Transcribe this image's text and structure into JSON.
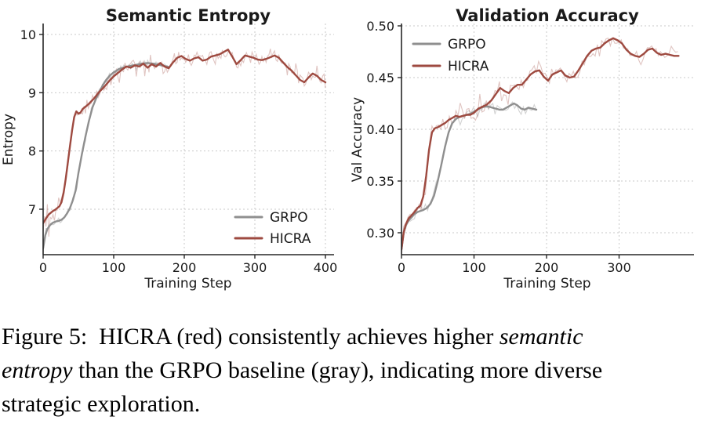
{
  "page": {
    "background": "#ffffff"
  },
  "colors": {
    "hicra": "#9e4a40",
    "grpo": "#8f8f8f",
    "hicra_raw": "rgba(158,74,64,0.32)",
    "grpo_raw": "rgba(158,158,158,0.45)",
    "grid": "#c9c9c9",
    "axis": "#262626",
    "text": "#1a1a1a"
  },
  "caption": {
    "lines": [
      {
        "segments": [
          {
            "text": "Figure 5:  HICRA (red) consistently achieves higher ",
            "italic": false
          },
          {
            "text": "semantic",
            "italic": true
          }
        ]
      },
      {
        "segments": [
          {
            "text": "entropy",
            "italic": true
          },
          {
            "text": " than the GRPO baseline (gray), indicating more diverse",
            "italic": false
          }
        ]
      },
      {
        "segments": [
          {
            "text": "strategic exploration.",
            "italic": false
          }
        ]
      }
    ]
  },
  "chart_data": [
    {
      "id": "semantic-entropy",
      "type": "line",
      "title": "Semantic Entropy",
      "xlabel": "Training Step",
      "ylabel": "Entropy",
      "xlim": [
        0,
        412
      ],
      "ylim": [
        6.22,
        10.19
      ],
      "grid": true,
      "legend_position": "lower-right",
      "raw_interval": 2,
      "xticks": {
        "values": [
          0,
          100,
          200,
          300,
          400
        ],
        "labels": [
          "0",
          "100",
          "200",
          "300",
          "400"
        ]
      },
      "yticks": {
        "values": [
          7,
          8,
          9,
          10
        ],
        "labels": [
          "7",
          "8",
          "9",
          "10"
        ]
      },
      "series": [
        {
          "name": "GRPO",
          "color_key": "grpo",
          "raw_color_key": "grpo_raw",
          "noise": 0.05,
          "x": [
            0,
            3,
            6,
            10,
            14,
            18,
            22,
            26,
            30,
            34,
            38,
            42,
            46,
            50,
            55,
            60,
            65,
            70,
            75,
            80,
            85,
            90,
            95,
            100,
            108,
            116,
            124,
            132,
            140,
            148,
            156,
            164,
            171,
            178
          ],
          "y": [
            6.33,
            6.55,
            6.66,
            6.73,
            6.77,
            6.79,
            6.8,
            6.82,
            6.86,
            6.93,
            7.02,
            7.15,
            7.32,
            7.62,
            7.95,
            8.25,
            8.52,
            8.75,
            8.9,
            9.02,
            9.14,
            9.23,
            9.3,
            9.35,
            9.41,
            9.44,
            9.46,
            9.48,
            9.5,
            9.51,
            9.5,
            9.48,
            9.46,
            9.44
          ]
        },
        {
          "name": "HICRA",
          "color_key": "hicra",
          "raw_color_key": "hicra_raw",
          "noise": 0.1,
          "x": [
            0,
            2,
            5,
            8,
            11,
            14,
            17,
            20,
            23,
            26,
            29,
            32,
            35,
            38,
            41,
            44,
            47,
            50,
            53,
            56,
            60,
            64,
            68,
            72,
            76,
            80,
            85,
            90,
            95,
            100,
            106,
            112,
            118,
            124,
            130,
            136,
            142,
            148,
            154,
            160,
            166,
            172,
            178,
            184,
            190,
            196,
            202,
            208,
            214,
            220,
            226,
            232,
            238,
            244,
            250,
            256,
            262,
            268,
            274,
            280,
            286,
            292,
            298,
            304,
            310,
            316,
            322,
            328,
            334,
            340,
            346,
            352,
            358,
            364,
            370,
            376,
            382,
            388,
            394,
            400
          ],
          "y": [
            6.76,
            6.8,
            6.86,
            6.91,
            6.94,
            6.97,
            6.99,
            7.02,
            7.05,
            7.12,
            7.28,
            7.52,
            7.8,
            8.08,
            8.35,
            8.58,
            8.68,
            8.64,
            8.66,
            8.72,
            8.76,
            8.8,
            8.85,
            8.9,
            8.96,
            9.02,
            9.08,
            9.15,
            9.22,
            9.28,
            9.34,
            9.4,
            9.45,
            9.43,
            9.47,
            9.45,
            9.5,
            9.43,
            9.49,
            9.45,
            9.51,
            9.45,
            9.42,
            9.52,
            9.6,
            9.63,
            9.58,
            9.55,
            9.59,
            9.61,
            9.55,
            9.57,
            9.62,
            9.64,
            9.66,
            9.7,
            9.74,
            9.62,
            9.49,
            9.56,
            9.64,
            9.62,
            9.6,
            9.57,
            9.56,
            9.58,
            9.61,
            9.64,
            9.6,
            9.52,
            9.44,
            9.38,
            9.3,
            9.22,
            9.18,
            9.26,
            9.33,
            9.29,
            9.22,
            9.18
          ]
        }
      ]
    },
    {
      "id": "validation-accuracy",
      "type": "line",
      "title": "Validation Accuracy",
      "xlabel": "Training Step",
      "ylabel": "Val Accuracy",
      "xlim": [
        0,
        403
      ],
      "ylim": [
        0.279,
        0.501
      ],
      "grid": true,
      "legend_position": "upper-left",
      "raw_interval": 3,
      "xticks": {
        "values": [
          0,
          100,
          200,
          300
        ],
        "labels": [
          "0",
          "100",
          "200",
          "300"
        ]
      },
      "yticks": {
        "values": [
          0.3,
          0.35,
          0.4,
          0.45,
          0.5
        ],
        "labels": [
          "0.30",
          "0.35",
          "0.40",
          "0.45",
          "0.50"
        ]
      },
      "series": [
        {
          "name": "GRPO",
          "color_key": "grpo",
          "raw_color_key": "grpo_raw",
          "noise": 0.0045,
          "x": [
            0,
            3,
            6,
            10,
            14,
            18,
            22,
            26,
            30,
            35,
            40,
            45,
            50,
            55,
            60,
            65,
            70,
            75,
            80,
            85,
            90,
            95,
            100,
            105,
            110,
            115,
            120,
            125,
            130,
            135,
            140,
            145,
            150,
            155,
            160,
            165,
            170,
            175,
            180,
            186
          ],
          "y": [
            0.284,
            0.3,
            0.307,
            0.312,
            0.315,
            0.318,
            0.32,
            0.321,
            0.322,
            0.324,
            0.328,
            0.336,
            0.35,
            0.366,
            0.383,
            0.397,
            0.406,
            0.41,
            0.412,
            0.413,
            0.414,
            0.415,
            0.417,
            0.419,
            0.421,
            0.422,
            0.422,
            0.421,
            0.42,
            0.419,
            0.419,
            0.421,
            0.423,
            0.425,
            0.423,
            0.42,
            0.419,
            0.421,
            0.42,
            0.419
          ]
        },
        {
          "name": "HICRA",
          "color_key": "hicra",
          "raw_color_key": "hicra_raw",
          "noise": 0.0065,
          "x": [
            0,
            3,
            6,
            10,
            14,
            18,
            22,
            26,
            30,
            34,
            38,
            42,
            46,
            50,
            55,
            60,
            65,
            70,
            75,
            80,
            85,
            90,
            95,
            100,
            106,
            112,
            118,
            124,
            130,
            136,
            142,
            148,
            154,
            160,
            166,
            172,
            178,
            184,
            190,
            196,
            202,
            208,
            214,
            220,
            226,
            232,
            238,
            244,
            250,
            256,
            262,
            268,
            274,
            280,
            286,
            292,
            298,
            304,
            310,
            316,
            322,
            328,
            334,
            340,
            346,
            352,
            358,
            364,
            370,
            376,
            382
          ],
          "y": [
            0.284,
            0.3,
            0.308,
            0.314,
            0.317,
            0.32,
            0.324,
            0.326,
            0.335,
            0.355,
            0.38,
            0.397,
            0.401,
            0.402,
            0.404,
            0.406,
            0.409,
            0.411,
            0.413,
            0.412,
            0.413,
            0.414,
            0.414,
            0.416,
            0.42,
            0.422,
            0.424,
            0.428,
            0.434,
            0.44,
            0.437,
            0.435,
            0.44,
            0.443,
            0.443,
            0.448,
            0.453,
            0.456,
            0.457,
            0.451,
            0.447,
            0.453,
            0.455,
            0.457,
            0.452,
            0.45,
            0.451,
            0.457,
            0.464,
            0.471,
            0.476,
            0.478,
            0.479,
            0.483,
            0.486,
            0.488,
            0.486,
            0.483,
            0.477,
            0.473,
            0.471,
            0.47,
            0.473,
            0.477,
            0.478,
            0.474,
            0.472,
            0.473,
            0.472,
            0.471,
            0.471
          ]
        }
      ]
    }
  ]
}
